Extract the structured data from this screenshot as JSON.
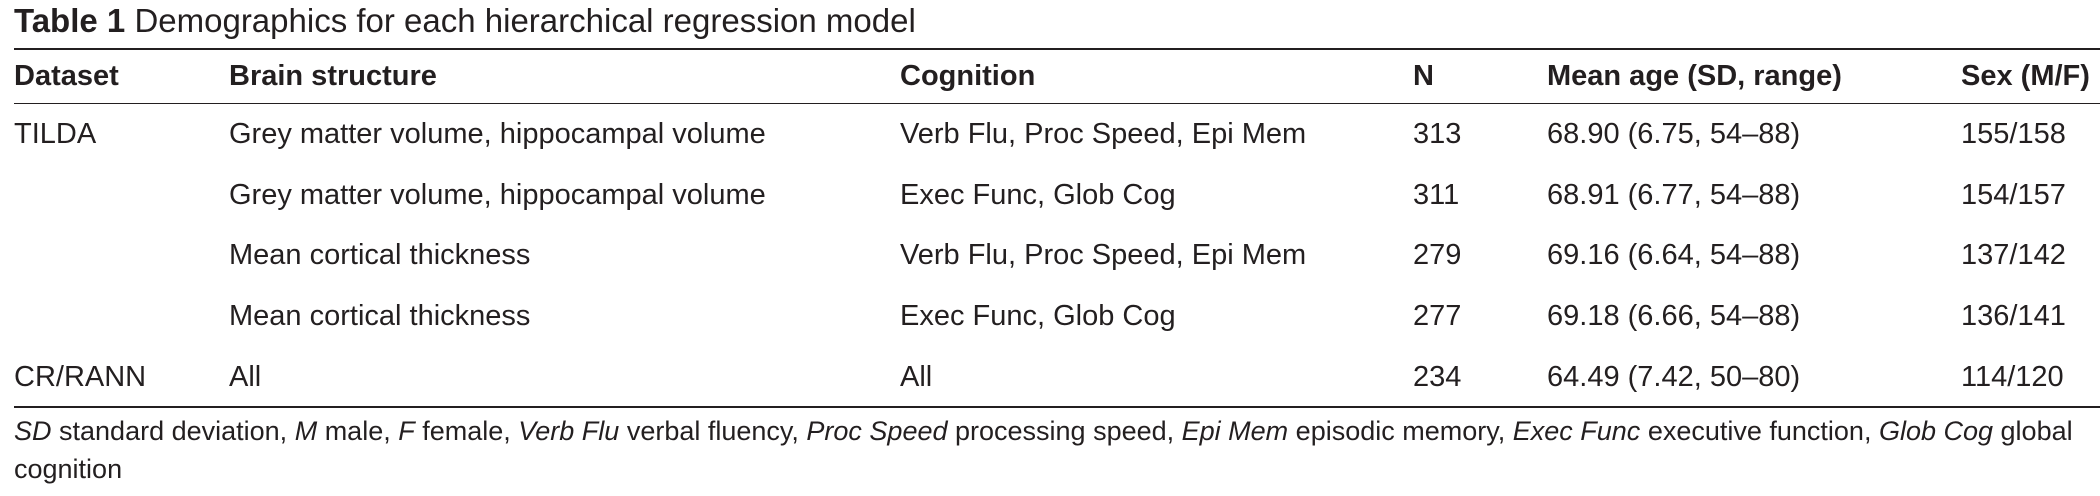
{
  "caption": {
    "label": "Table 1",
    "title": "Demographics for each hierarchical regression model"
  },
  "table": {
    "columns": [
      "Dataset",
      "Brain structure",
      "Cognition",
      "N",
      "Mean age (SD, range)",
      "Sex (M/F)"
    ],
    "rows": [
      [
        "TILDA",
        "Grey matter volume, hippocampal volume",
        "Verb Flu, Proc Speed, Epi Mem",
        "313",
        "68.90 (6.75, 54–88)",
        "155/158"
      ],
      [
        "",
        "Grey matter volume, hippocampal volume",
        "Exec Func, Glob Cog",
        "311",
        "68.91 (6.77, 54–88)",
        "154/157"
      ],
      [
        "",
        "Mean cortical thickness",
        "Verb Flu, Proc Speed, Epi Mem",
        "279",
        "69.16 (6.64, 54–88)",
        "137/142"
      ],
      [
        "",
        "Mean cortical thickness",
        "Exec Func, Glob Cog",
        "277",
        "69.18 (6.66, 54–88)",
        "136/141"
      ],
      [
        "CR/RANN",
        "All",
        "All",
        "234",
        "64.49 (7.42, 50–80)",
        "114/120"
      ]
    ]
  },
  "footnote": {
    "items": [
      {
        "abbr": "SD",
        "text": " standard deviation, "
      },
      {
        "abbr": "M",
        "text": " male, "
      },
      {
        "abbr": "F",
        "text": " female, "
      },
      {
        "abbr": "Verb Flu",
        "text": " verbal fluency, "
      },
      {
        "abbr": "Proc Speed",
        "text": " processing speed, "
      },
      {
        "abbr": "Epi Mem",
        "text": " episodic memory, "
      },
      {
        "abbr": "Exec Func",
        "text": " executive function, "
      },
      {
        "abbr": "Glob Cog",
        "text": " global cognition"
      }
    ]
  }
}
